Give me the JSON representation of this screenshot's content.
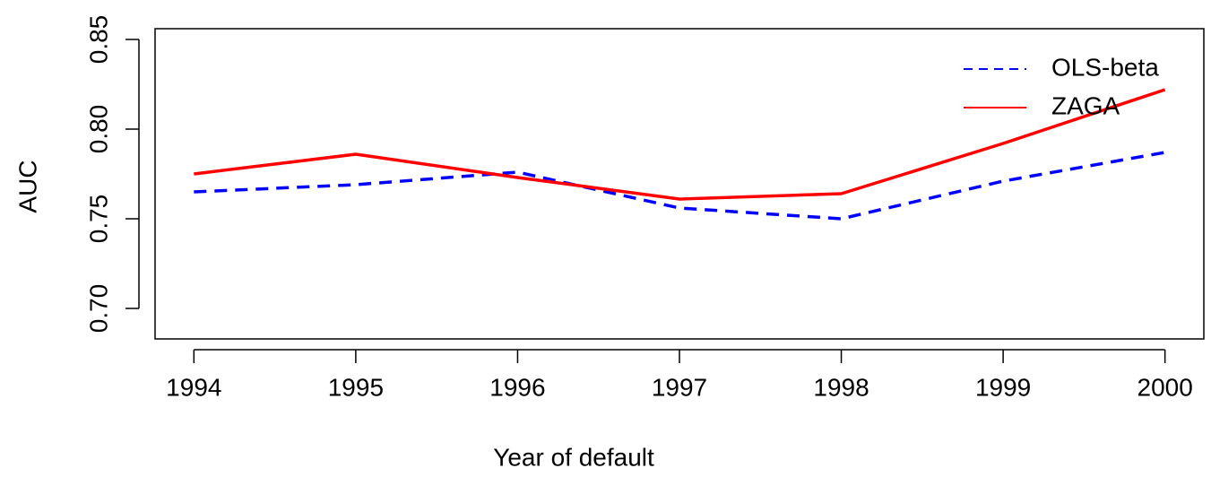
{
  "chart_data": {
    "type": "line",
    "x_label": "Year of default",
    "y_label": "AUC",
    "x": [
      1994,
      1995,
      1996,
      1997,
      1998,
      1999,
      2000
    ],
    "series": [
      {
        "name": "OLS-beta",
        "color": "#0000ff",
        "dash": true,
        "values": [
          0.765,
          0.769,
          0.776,
          0.756,
          0.75,
          0.771,
          0.787
        ]
      },
      {
        "name": "ZAGA",
        "color": "#ff0000",
        "dash": false,
        "values": [
          0.775,
          0.786,
          0.773,
          0.761,
          0.764,
          0.792,
          0.822
        ]
      }
    ],
    "xlim": [
      1993.76,
      2000.24
    ],
    "ylim": [
      0.683,
      0.856
    ],
    "xticks": [
      1994,
      1995,
      1996,
      1997,
      1998,
      1999,
      2000
    ],
    "yticks": [
      {
        "value": 0.7,
        "label": "0.70"
      },
      {
        "value": 0.75,
        "label": "0.75"
      },
      {
        "value": 0.8,
        "label": "0.80"
      },
      {
        "value": 0.85,
        "label": "0.85"
      }
    ],
    "grid": false,
    "legend": "top-right"
  }
}
